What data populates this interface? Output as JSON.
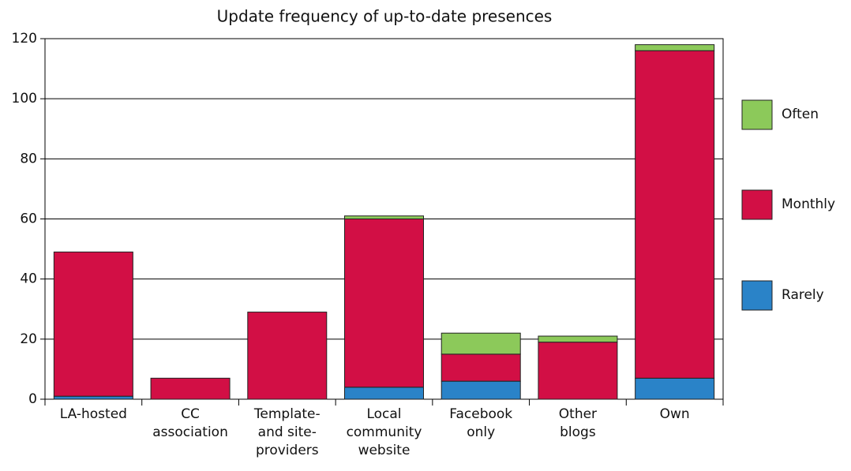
{
  "chart_data": {
    "type": "stacked_bar",
    "title": "Update frequency of up-to-date presences",
    "categories": [
      [
        "LA-hosted"
      ],
      [
        "CC",
        "association"
      ],
      [
        "Template-",
        "and site-",
        "providers"
      ],
      [
        "Local",
        "community",
        "website"
      ],
      [
        "Facebook",
        "only"
      ],
      [
        "Other",
        "blogs"
      ],
      [
        "Own"
      ]
    ],
    "series": [
      {
        "name": "Rarely",
        "color": "#2a83c8",
        "values": [
          1,
          0,
          0,
          4,
          6,
          0,
          7
        ]
      },
      {
        "name": "Monthly",
        "color": "#d20f45",
        "values": [
          48,
          7,
          29,
          56,
          9,
          19,
          109
        ]
      },
      {
        "name": "Often",
        "color": "#8cc95a",
        "values": [
          0,
          0,
          0,
          1,
          7,
          2,
          2
        ]
      }
    ],
    "ylim": [
      0,
      120
    ],
    "yticks": [
      0,
      20,
      40,
      60,
      80,
      100,
      120
    ],
    "grid": true,
    "legend": "right"
  }
}
